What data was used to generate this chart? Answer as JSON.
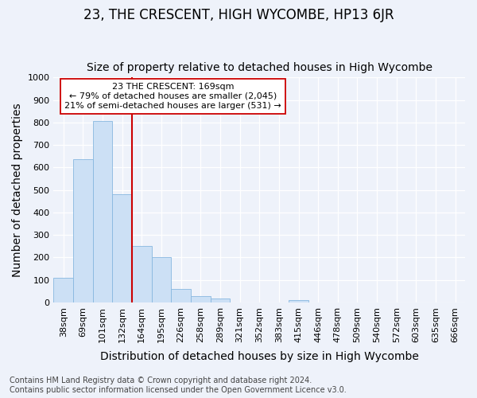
{
  "title": "23, THE CRESCENT, HIGH WYCOMBE, HP13 6JR",
  "subtitle": "Size of property relative to detached houses in High Wycombe",
  "xlabel": "Distribution of detached houses by size in High Wycombe",
  "ylabel": "Number of detached properties",
  "categories": [
    "38sqm",
    "69sqm",
    "101sqm",
    "132sqm",
    "164sqm",
    "195sqm",
    "226sqm",
    "258sqm",
    "289sqm",
    "321sqm",
    "352sqm",
    "383sqm",
    "415sqm",
    "446sqm",
    "478sqm",
    "509sqm",
    "540sqm",
    "572sqm",
    "603sqm",
    "635sqm",
    "666sqm"
  ],
  "values": [
    110,
    635,
    805,
    480,
    250,
    200,
    60,
    28,
    18,
    0,
    0,
    0,
    10,
    0,
    0,
    0,
    0,
    0,
    0,
    0,
    0
  ],
  "bar_color": "#cce0f5",
  "bar_edge_color": "#88b8e0",
  "highlight_line_index": 4,
  "highlight_line_color": "#cc0000",
  "annotation_text": "23 THE CRESCENT: 169sqm\n← 79% of detached houses are smaller (2,045)\n21% of semi-detached houses are larger (531) →",
  "annotation_box_facecolor": "#ffffff",
  "annotation_box_edgecolor": "#cc0000",
  "ylim": [
    0,
    1000
  ],
  "yticks": [
    0,
    100,
    200,
    300,
    400,
    500,
    600,
    700,
    800,
    900,
    1000
  ],
  "footer_text": "Contains HM Land Registry data © Crown copyright and database right 2024.\nContains public sector information licensed under the Open Government Licence v3.0.",
  "background_color": "#eef2fa",
  "grid_color": "#ffffff",
  "title_fontsize": 12,
  "subtitle_fontsize": 10,
  "axis_label_fontsize": 10,
  "tick_fontsize": 8,
  "annotation_fontsize": 8,
  "footer_fontsize": 7
}
